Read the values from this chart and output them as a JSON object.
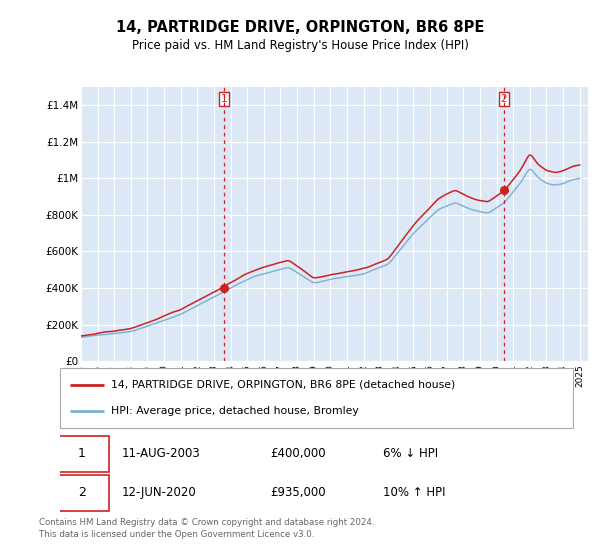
{
  "title": "14, PARTRIDGE DRIVE, ORPINGTON, BR6 8PE",
  "subtitle": "Price paid vs. HM Land Registry's House Price Index (HPI)",
  "sale1_date": "11-AUG-2003",
  "sale1_price": 400000,
  "sale1_year": 2003.614,
  "sale2_date": "12-JUN-2020",
  "sale2_price": 935000,
  "sale2_year": 2020.45,
  "start_year": 1995,
  "end_year": 2025,
  "ylim_max": 1500000,
  "yticks": [
    0,
    200000,
    400000,
    600000,
    800000,
    1000000,
    1200000,
    1400000
  ],
  "ytick_labels": [
    "£0",
    "£200K",
    "£400K",
    "£600K",
    "£800K",
    "£1M",
    "£1.2M",
    "£1.4M"
  ],
  "bg_color": "#dce8f5",
  "grid_color": "#ffffff",
  "hpi_color": "#7ab0d4",
  "price_color": "#cc2222",
  "vline_color": "#cc2222",
  "legend_label_price": "14, PARTRIDGE DRIVE, ORPINGTON, BR6 8PE (detached house)",
  "legend_label_hpi": "HPI: Average price, detached house, Bromley",
  "footer_text": "Contains HM Land Registry data © Crown copyright and database right 2024.\nThis data is licensed under the Open Government Licence v3.0."
}
